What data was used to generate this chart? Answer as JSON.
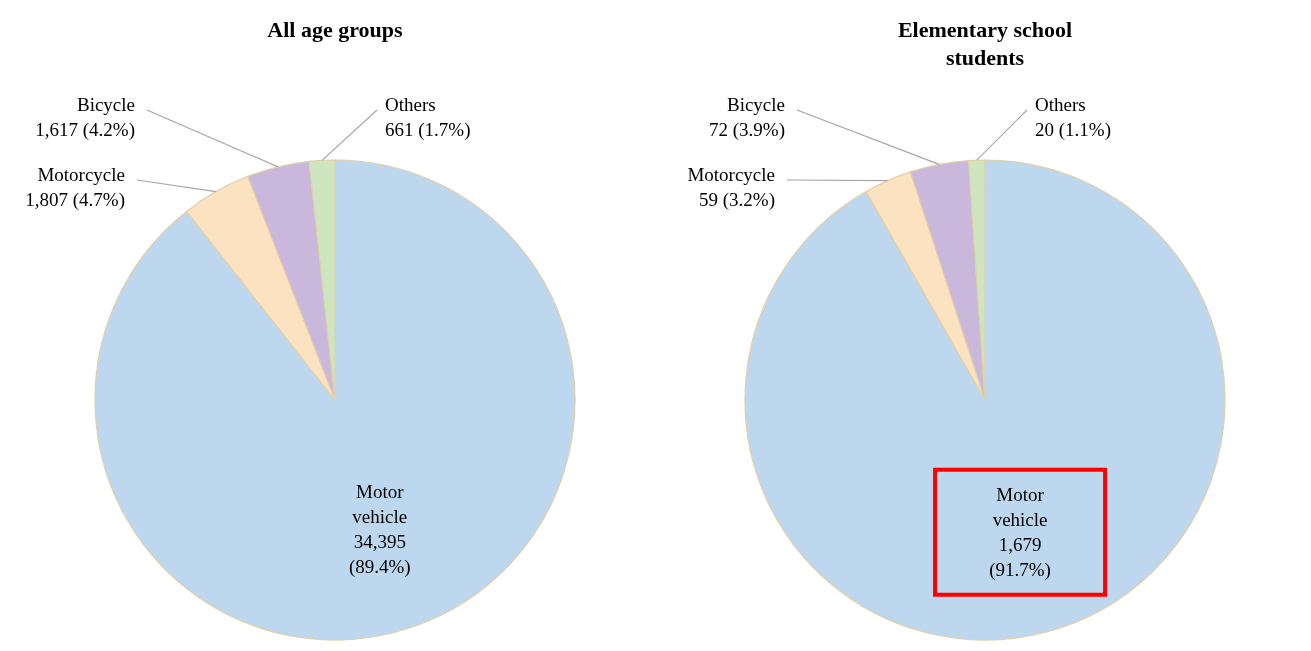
{
  "chart_data": [
    {
      "type": "pie",
      "title": "All age groups",
      "categories": [
        "Motor vehicle",
        "Motorcycle",
        "Bicycle",
        "Others"
      ],
      "values": [
        34395,
        1807,
        1617,
        661
      ],
      "colors": [
        "#bdd7ee",
        "#fbe3c1",
        "#c9b8dc",
        "#cde6c0"
      ],
      "value_labels": [
        "34,395 (89.4%)",
        "1,807 (4.7%)",
        "1,617 (4.2%)",
        "661 (1.7%)"
      ]
    },
    {
      "type": "pie",
      "title": "Elementary school students",
      "categories": [
        "Motor vehicle",
        "Motorcycle",
        "Bicycle",
        "Others"
      ],
      "values": [
        1679,
        59,
        72,
        20
      ],
      "colors": [
        "#bdd7ee",
        "#fbe3c1",
        "#c9b8dc",
        "#cde6c0"
      ],
      "value_labels": [
        "1,679 (91.7%)",
        "59 (3.2%)",
        "72 (3.9%)",
        "20 (1.1%)"
      ]
    }
  ]
}
